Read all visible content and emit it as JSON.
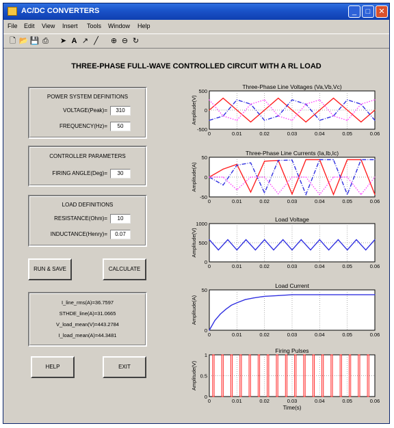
{
  "window": {
    "title": "AC/DC CONVERTERS"
  },
  "menu": [
    "File",
    "Edit",
    "View",
    "Insert",
    "Tools",
    "Window",
    "Help"
  ],
  "toolbar_icons": [
    "new-icon",
    "open-icon",
    "save-icon",
    "print-icon",
    "select-arrow-icon",
    "text-icon",
    "arrow-icon",
    "line-icon",
    "zoom-in-icon",
    "zoom-out-icon",
    "rotate-icon"
  ],
  "figure_title": "THREE-PHASE FULL-WAVE CONTROLLED CIRCUIT WITH A RL LOAD",
  "power_system": {
    "title": "POWER SYSTEM DEFINITIONS",
    "voltage_label": "VOLTAGE(Peak)=",
    "voltage_value": "310",
    "frequency_label": "FREQUENCY(Hz)=",
    "frequency_value": "50"
  },
  "controller": {
    "title": "CONTROLLER PARAMETERS",
    "firing_label": "FIRING ANGLE(Deg)=",
    "firing_value": "30"
  },
  "load": {
    "title": "LOAD DEFINITIONS",
    "resistance_label": "RESISTANCE(Ohm)=",
    "resistance_value": "10",
    "inductance_label": "INDUCTANCE(Henry)=",
    "inductance_value": "0.07"
  },
  "buttons": {
    "run_save": "RUN & SAVE",
    "calculate": "CALCULATE",
    "help": "HELP",
    "exit": "EXIT"
  },
  "results": [
    "I_line_rms(A)=36.7597",
    "STHDE_line(A)=31.0665",
    "V_load_mean(V)=443.2784",
    "I_load_mean(A)=44.3481"
  ],
  "x_axis_label": "Time(s)",
  "chart_data": [
    {
      "type": "line",
      "title": "Three-Phase Line Voltages (Va,Vb,Vc)",
      "ylabel": "Amplitude(V)",
      "xlim": [
        0,
        0.06
      ],
      "ylim": [
        -500,
        500
      ],
      "xticks": [
        "0",
        "0.01",
        "0.02",
        "0.03",
        "0.04",
        "0.05",
        "0.06"
      ],
      "yticks": [
        "-500",
        "0",
        "500"
      ],
      "grid": true,
      "series": [
        {
          "color": "#ff2020",
          "style": "solid",
          "x": [
            0,
            0.005,
            0.01,
            0.015,
            0.02,
            0.025,
            0.03,
            0.035,
            0.04,
            0.045,
            0.05,
            0.055,
            0.06
          ],
          "y": [
            0,
            310,
            0,
            -310,
            0,
            310,
            0,
            -310,
            0,
            310,
            0,
            -310,
            0
          ]
        },
        {
          "color": "#3030e0",
          "style": "dashdot",
          "x": [
            0,
            0.005,
            0.01,
            0.015,
            0.02,
            0.025,
            0.03,
            0.035,
            0.04,
            0.045,
            0.05,
            0.055,
            0.06
          ],
          "y": [
            -268,
            -155,
            268,
            155,
            -268,
            -155,
            268,
            155,
            -268,
            -155,
            268,
            155,
            -268
          ]
        },
        {
          "color": "#ff40ff",
          "style": "dotted",
          "x": [
            0,
            0.005,
            0.01,
            0.015,
            0.02,
            0.025,
            0.03,
            0.035,
            0.04,
            0.045,
            0.05,
            0.055,
            0.06
          ],
          "y": [
            268,
            -155,
            -268,
            155,
            268,
            -155,
            -268,
            155,
            268,
            -155,
            -268,
            155,
            268
          ]
        }
      ]
    },
    {
      "type": "line",
      "title": "Three-Phase Line Currents (Ia,Ib,Ic)",
      "ylabel": "Amplitude(A)",
      "xlim": [
        0,
        0.06
      ],
      "ylim": [
        -50,
        50
      ],
      "xticks": [
        "0",
        "0.01",
        "0.02",
        "0.03",
        "0.04",
        "0.05",
        "0.06"
      ],
      "yticks": [
        "-50",
        "0",
        "50"
      ],
      "grid": true,
      "series": [
        {
          "color": "#ff2020",
          "style": "solid",
          "x": [
            0,
            0.005,
            0.01,
            0.015,
            0.02,
            0.025,
            0.03,
            0.035,
            0.04,
            0.045,
            0.05,
            0.055,
            0.06
          ],
          "y": [
            0,
            20,
            32,
            -38,
            40,
            42,
            -43,
            44,
            44,
            -44,
            44,
            44,
            -44
          ]
        },
        {
          "color": "#3030e0",
          "style": "dashdot",
          "x": [
            0,
            0.005,
            0.01,
            0.015,
            0.02,
            0.025,
            0.03,
            0.035,
            0.04,
            0.045,
            0.05,
            0.055,
            0.06
          ],
          "y": [
            0,
            -20,
            30,
            36,
            -40,
            42,
            43,
            -44,
            44,
            44,
            -44,
            44,
            44
          ]
        },
        {
          "color": "#ff40ff",
          "style": "dotted",
          "x": [
            0,
            0.005,
            0.01,
            0.015,
            0.02,
            0.025,
            0.03,
            0.035,
            0.04,
            0.045,
            0.05,
            0.055,
            0.06
          ],
          "y": [
            0,
            0,
            -32,
            0,
            0,
            -42,
            0,
            0,
            -44,
            0,
            0,
            -44,
            0
          ]
        }
      ]
    },
    {
      "type": "line",
      "title": "Load Voltage",
      "ylabel": "Amplitude(V)",
      "xlim": [
        0,
        0.06
      ],
      "ylim": [
        0,
        1000
      ],
      "xticks": [
        "0",
        "0.01",
        "0.02",
        "0.03",
        "0.04",
        "0.05",
        "0.06"
      ],
      "yticks": [
        "0",
        "500",
        "1000"
      ],
      "grid": true,
      "series": [
        {
          "color": "#3030e0",
          "style": "solid",
          "x": [
            0,
            0.0033,
            0.0067,
            0.01,
            0.0133,
            0.0167,
            0.02,
            0.0233,
            0.0267,
            0.03,
            0.0333,
            0.0367,
            0.04,
            0.0433,
            0.0467,
            0.05,
            0.0533,
            0.0567,
            0.06
          ],
          "y": [
            580,
            310,
            580,
            310,
            580,
            310,
            580,
            310,
            580,
            310,
            580,
            310,
            580,
            310,
            580,
            310,
            580,
            310,
            580
          ]
        }
      ]
    },
    {
      "type": "line",
      "title": "Load Current",
      "ylabel": "Amplitude(A)",
      "xlim": [
        0,
        0.06
      ],
      "ylim": [
        0,
        50
      ],
      "xticks": [
        "0",
        "0.01",
        "0.02",
        "0.03",
        "0.04",
        "0.05",
        "0.06"
      ],
      "yticks": [
        "0",
        "50"
      ],
      "grid": true,
      "series": [
        {
          "color": "#3030e0",
          "style": "solid",
          "x": [
            0,
            0.002,
            0.004,
            0.006,
            0.008,
            0.01,
            0.013,
            0.016,
            0.02,
            0.025,
            0.03,
            0.04,
            0.05,
            0.06
          ],
          "y": [
            0,
            12,
            20,
            26,
            31,
            34,
            38,
            40,
            42,
            43,
            44,
            44,
            44,
            44
          ]
        }
      ]
    },
    {
      "type": "bar",
      "title": "Firing Pulses",
      "ylabel": "Amplitude(V)",
      "xlabel": "Time(s)",
      "xlim": [
        0,
        0.06
      ],
      "ylim": [
        0,
        1
      ],
      "xticks": [
        "0",
        "0.01",
        "0.02",
        "0.03",
        "0.04",
        "0.05",
        "0.06"
      ],
      "yticks": [
        "0",
        "0.5",
        "1"
      ],
      "grid": true,
      "series": [
        {
          "color": "#ff2020",
          "style": "pulses",
          "period": 0.0033,
          "value": 1
        }
      ]
    }
  ]
}
